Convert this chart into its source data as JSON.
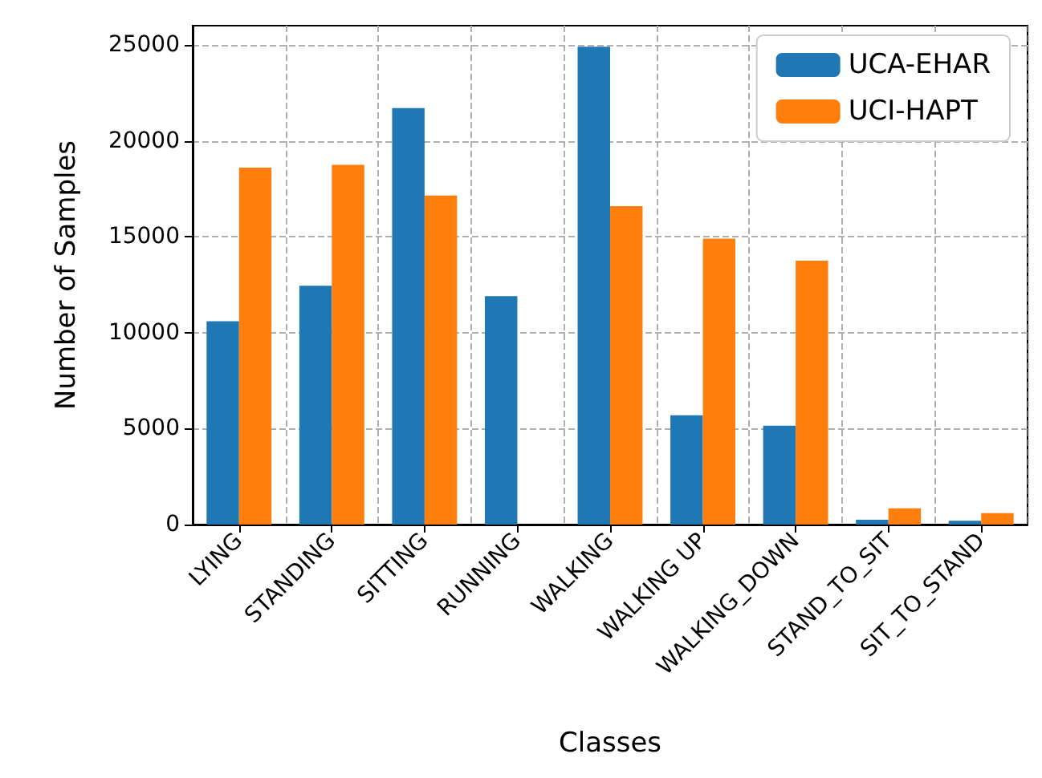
{
  "chart_data": {
    "type": "bar",
    "xlabel": "Classes",
    "ylabel": "Number of Samples",
    "categories": [
      "LYING",
      "STANDING",
      "SITTING",
      "RUNNING",
      "WALKING",
      "WALKING UP",
      "WALKING_DOWN",
      "STAND_TO_SIT",
      "SIT_TO_STAND"
    ],
    "series": [
      {
        "name": "UCA-EHAR",
        "color": "#1f77b4",
        "values": [
          10600,
          12450,
          21700,
          11900,
          24900,
          5700,
          5150,
          250,
          200
        ]
      },
      {
        "name": "UCI-HAPT",
        "color": "#ff7f0e",
        "values": [
          18600,
          18750,
          17150,
          0,
          16600,
          14900,
          13750,
          850,
          600
        ]
      }
    ],
    "ylim": [
      0,
      26000
    ],
    "yticks": [
      0,
      5000,
      10000,
      15000,
      20000,
      25000
    ],
    "grid": true,
    "legend": "top right"
  }
}
